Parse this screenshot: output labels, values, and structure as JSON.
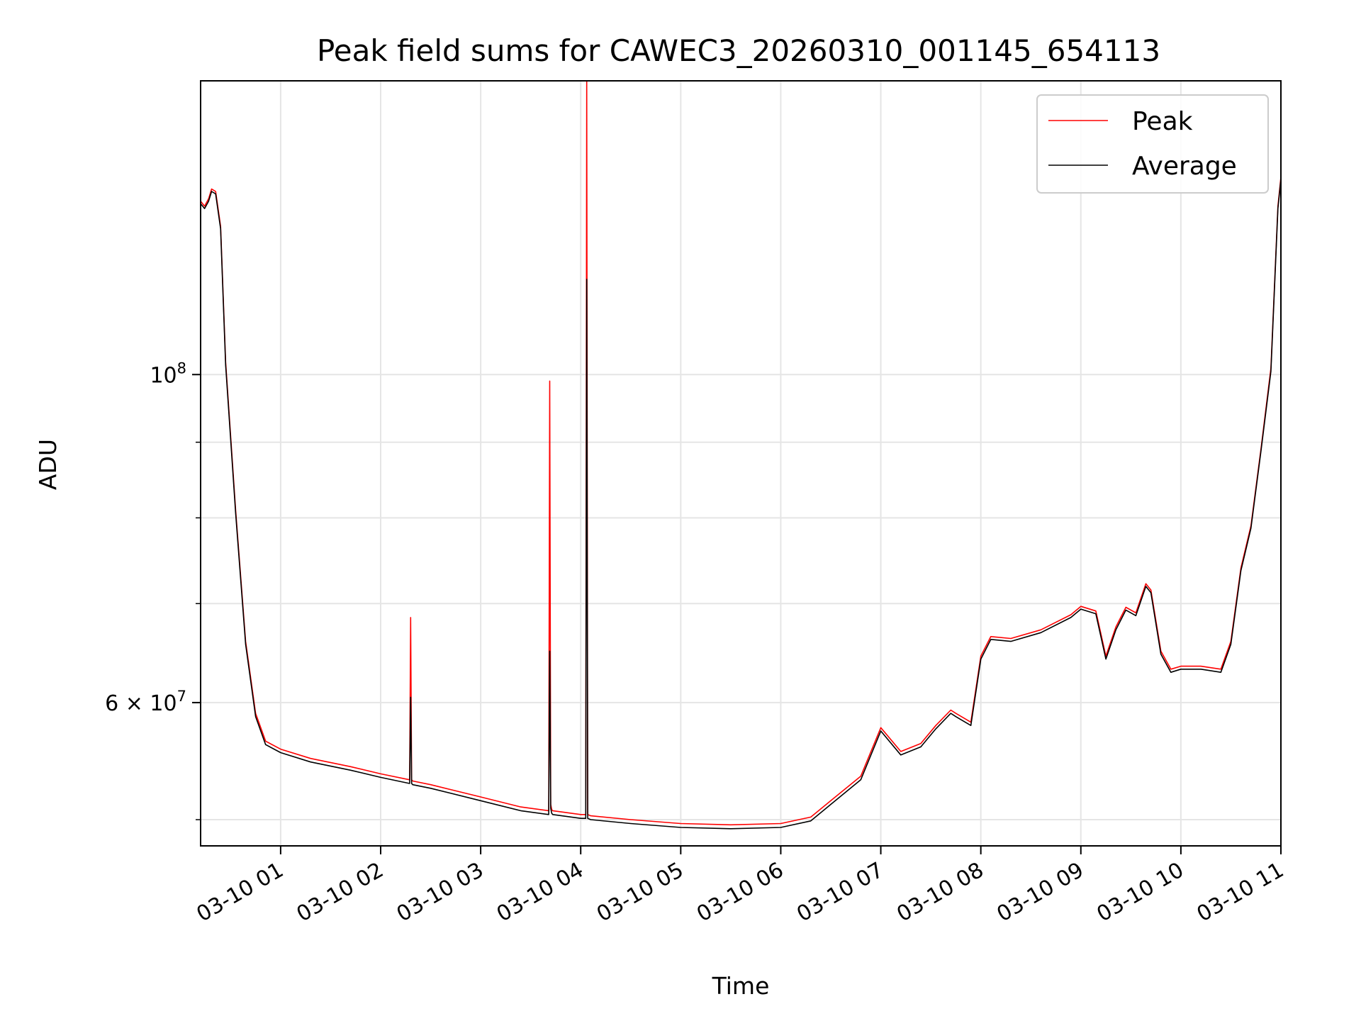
{
  "chart_data": {
    "type": "line",
    "title": "Peak field sums for CAWEC3_20260310_001145_654113",
    "xlabel": "Time",
    "ylabel": "ADU",
    "yscale": "log",
    "xlim": [
      "03-10 00:12",
      "03-10 11:00"
    ],
    "ylim": [
      48000000,
      158000000
    ],
    "grid": true,
    "legend_position": "top-right",
    "x_ticks": [
      "03-10 01",
      "03-10 02",
      "03-10 03",
      "03-10 04",
      "03-10 05",
      "03-10 06",
      "03-10 07",
      "03-10 08",
      "03-10 09",
      "03-10 10",
      "03-10 11"
    ],
    "y_ticks": [
      {
        "value": 100000000,
        "label_base": "10",
        "label_exp": "8"
      },
      {
        "value": 60000000,
        "label_base": "6 × 10",
        "label_exp": "7"
      }
    ],
    "y_minor_ticks": [
      50000000,
      70000000,
      80000000,
      90000000
    ],
    "x_unit": "hour of 03-10",
    "series": [
      {
        "name": "Peak",
        "color": "#ff0000",
        "x": [
          0.2,
          0.24,
          0.28,
          0.31,
          0.35,
          0.4,
          0.45,
          0.55,
          0.65,
          0.75,
          0.85,
          1.0,
          1.3,
          1.7,
          2.0,
          2.29,
          2.3,
          2.31,
          2.32,
          2.5,
          3.0,
          3.4,
          3.68,
          3.69,
          3.7,
          3.71,
          3.72,
          4.0,
          4.05,
          4.06,
          4.07,
          4.1,
          4.5,
          5.0,
          5.5,
          6.0,
          6.3,
          6.5,
          6.8,
          7.0,
          7.2,
          7.4,
          7.55,
          7.7,
          7.75,
          7.9,
          8.0,
          8.1,
          8.3,
          8.6,
          8.9,
          9.0,
          9.15,
          9.25,
          9.35,
          9.45,
          9.55,
          9.65,
          9.7,
          9.8,
          9.9,
          10.0,
          10.2,
          10.4,
          10.5,
          10.6,
          10.7,
          10.8,
          10.9,
          10.97,
          11.0
        ],
        "values": [
          131000000,
          130000000,
          131500000,
          133500000,
          133000000,
          126000000,
          102000000,
          81000000,
          66000000,
          59000000,
          56500000,
          55800000,
          55000000,
          54300000,
          53700000,
          53200000,
          68500000,
          53200000,
          53100000,
          52800000,
          51800000,
          51000000,
          50700000,
          99000000,
          51200000,
          50800000,
          50700000,
          50400000,
          50400000,
          158000000,
          50400000,
          50300000,
          50000000,
          49700000,
          49600000,
          49700000,
          50200000,
          51500000,
          53500000,
          57700000,
          55600000,
          56300000,
          57900000,
          59300000,
          59000000,
          58200000,
          64500000,
          66500000,
          66300000,
          67200000,
          68800000,
          69700000,
          69200000,
          64500000,
          67500000,
          69600000,
          69000000,
          72200000,
          71500000,
          65000000,
          63200000,
          63500000,
          63500000,
          63200000,
          66000000,
          74000000,
          79000000,
          89000000,
          101000000,
          130000000,
          136000000
        ]
      },
      {
        "name": "Average",
        "color": "#000000",
        "x": [
          0.2,
          0.24,
          0.28,
          0.31,
          0.35,
          0.4,
          0.45,
          0.55,
          0.65,
          0.75,
          0.85,
          1.0,
          1.3,
          1.7,
          2.0,
          2.29,
          2.3,
          2.31,
          2.32,
          2.5,
          3.0,
          3.4,
          3.68,
          3.69,
          3.7,
          3.71,
          3.72,
          4.0,
          4.05,
          4.06,
          4.07,
          4.1,
          4.5,
          5.0,
          5.5,
          6.0,
          6.3,
          6.5,
          6.8,
          7.0,
          7.2,
          7.4,
          7.55,
          7.7,
          7.75,
          7.9,
          8.0,
          8.1,
          8.3,
          8.6,
          8.9,
          9.0,
          9.15,
          9.25,
          9.35,
          9.45,
          9.55,
          9.65,
          9.7,
          9.8,
          9.9,
          10.0,
          10.2,
          10.4,
          10.5,
          10.6,
          10.7,
          10.8,
          10.9,
          10.97,
          11.0
        ],
        "values": [
          130500000,
          129500000,
          131000000,
          133000000,
          132500000,
          125500000,
          101500000,
          80600000,
          65700000,
          58700000,
          56200000,
          55500000,
          54700000,
          54000000,
          53400000,
          52900000,
          60500000,
          52900000,
          52800000,
          52500000,
          51500000,
          50700000,
          50400000,
          65000000,
          50900000,
          50500000,
          50400000,
          50100000,
          50100000,
          116000000,
          50100000,
          50000000,
          49700000,
          49400000,
          49300000,
          49400000,
          49900000,
          51200000,
          53200000,
          57400000,
          55300000,
          56000000,
          57600000,
          59000000,
          58700000,
          57900000,
          64200000,
          66200000,
          66000000,
          66900000,
          68500000,
          69400000,
          68900000,
          64200000,
          67200000,
          69300000,
          68700000,
          71900000,
          71200000,
          64700000,
          62900000,
          63200000,
          63200000,
          62900000,
          65700000,
          73700000,
          78700000,
          88700000,
          100500000,
          129500000,
          135500000
        ]
      }
    ]
  }
}
